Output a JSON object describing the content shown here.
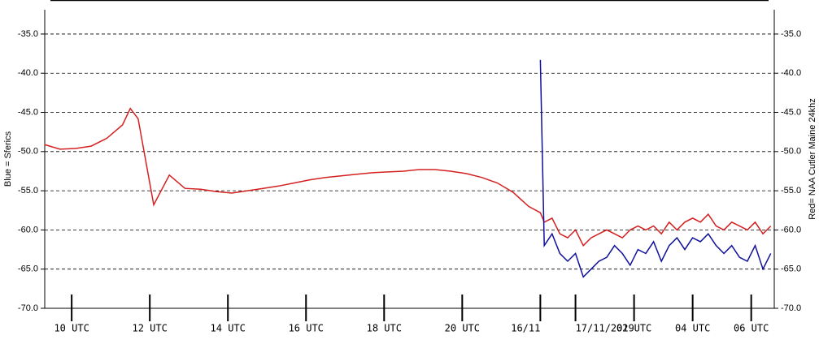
{
  "chart_data": {
    "type": "line",
    "y_label": "Blue = Sferics",
    "y2_label": "Red= NAA Cutler Maine 24khz",
    "x": [
      9.3,
      9.7,
      10.1,
      10.5,
      10.9,
      11.3,
      11.5,
      11.7,
      12.1,
      12.5,
      12.9,
      13.3,
      13.7,
      14.1,
      14.5,
      14.9,
      15.3,
      15.7,
      16.1,
      16.5,
      16.9,
      17.3,
      17.7,
      18.1,
      18.5,
      18.9,
      19.3,
      19.7,
      20.1,
      20.5,
      20.9,
      21.3,
      21.7,
      22.0,
      22.1,
      22.3,
      22.5,
      22.7,
      22.9,
      23.1,
      23.3,
      23.5,
      23.7,
      23.9,
      24.1,
      24.3,
      24.5,
      24.7,
      24.9,
      25.1,
      25.3,
      25.5,
      25.7,
      25.9,
      26.1,
      26.3,
      26.5,
      26.7,
      26.9,
      27.1,
      27.3,
      27.5,
      27.7,
      27.9
    ],
    "series": [
      {
        "name": "Red",
        "color": "#d42020",
        "values": [
          -49.1,
          -49.7,
          -49.6,
          -49.3,
          -48.3,
          -46.6,
          -44.5,
          -45.8,
          -56.8,
          -53.0,
          -54.7,
          -54.8,
          -55.1,
          -55.3,
          -55.0,
          -54.7,
          -54.4,
          -54.0,
          -53.6,
          -53.3,
          -53.1,
          -52.9,
          -52.7,
          -52.6,
          -52.5,
          -52.3,
          -52.3,
          -52.5,
          -52.8,
          -53.3,
          -54.0,
          -55.2,
          -57.0,
          -57.8,
          -59,
          -58.5,
          -60.5,
          -61,
          -60,
          -62,
          -61,
          -60.5,
          -60,
          -60.5,
          -61,
          -60,
          -59.5,
          -60,
          -59.5,
          -60.5,
          -59,
          -60,
          -59,
          -58.5,
          -59,
          -58,
          -59.5,
          -60,
          -59,
          -59.5,
          -60,
          -59,
          -60.5,
          -59.5
        ]
      },
      {
        "name": "Blue",
        "color": "#10109a",
        "values": [
          null,
          null,
          null,
          null,
          null,
          null,
          null,
          null,
          null,
          null,
          null,
          null,
          null,
          null,
          null,
          null,
          null,
          null,
          null,
          null,
          null,
          null,
          null,
          null,
          null,
          null,
          null,
          null,
          null,
          null,
          null,
          null,
          null,
          -38.3,
          -62,
          -60.5,
          -63,
          -64,
          -63,
          -66,
          -65,
          -64,
          -63.5,
          -62,
          -63,
          -64.5,
          -62.5,
          -63,
          -61.5,
          -64,
          -62,
          -61,
          -62.5,
          -61,
          -61.5,
          -60.5,
          -62,
          -63,
          -62,
          -63.5,
          -64,
          -62,
          -65,
          -63
        ]
      }
    ],
    "xlim": [
      9.31,
      27.99
    ],
    "xticks": [
      {
        "value": 10,
        "label": "10 UTC"
      },
      {
        "value": 12,
        "label": "12 UTC"
      },
      {
        "value": 14,
        "label": "14 UTC"
      },
      {
        "value": 16,
        "label": "16 UTC"
      },
      {
        "value": 18,
        "label": "18 UTC"
      },
      {
        "value": 20,
        "label": "20 UTC"
      },
      {
        "value": 22,
        "label": "16/11"
      },
      {
        "value": 22.9,
        "label": "17/11/2019"
      },
      {
        "value": 24.4,
        "label": "02 UTC"
      },
      {
        "value": 25.9,
        "label": "04 UTC"
      },
      {
        "value": 27.4,
        "label": "06 UTC"
      }
    ],
    "ylim": [
      -70,
      -31.9
    ],
    "yticks": [
      {
        "value": -35,
        "label": "-35.0"
      },
      {
        "value": -40,
        "label": "-40.0"
      },
      {
        "value": -45,
        "label": "-45.0"
      },
      {
        "value": -50,
        "label": "-50.0"
      },
      {
        "value": -55,
        "label": "-55.0"
      },
      {
        "value": -60,
        "label": "-60.0"
      },
      {
        "value": -65,
        "label": "-65.0"
      },
      {
        "value": -70,
        "label": "-70.0"
      }
    ],
    "grid": true
  }
}
